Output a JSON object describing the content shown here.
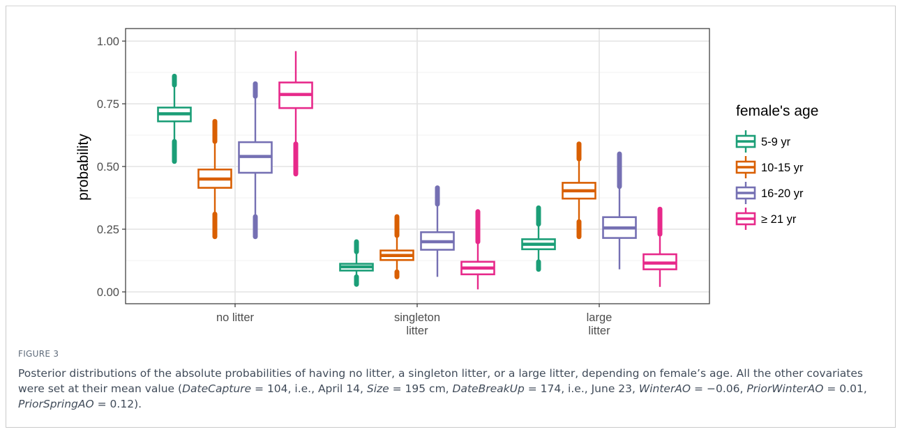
{
  "figure": {
    "label": "FIGURE 3",
    "caption_parts": [
      {
        "t": "Posterior distributions of the absolute probabilities of having no litter, a singleton litter, or a large litter, depending on female’s age. All the other covariates were set at their mean value (",
        "i": false
      },
      {
        "t": "DateCapture",
        "i": true
      },
      {
        "t": " = 104, i.e., April 14, ",
        "i": false
      },
      {
        "t": "Size",
        "i": true
      },
      {
        "t": " = 195 cm, ",
        "i": false
      },
      {
        "t": "DateBreakUp",
        "i": true
      },
      {
        "t": " = 174, i.e., June 23, ",
        "i": false
      },
      {
        "t": "WinterAO",
        "i": true
      },
      {
        "t": " = −0.06, ",
        "i": false
      },
      {
        "t": "PriorWinterAO",
        "i": true
      },
      {
        "t": " = 0.01, ",
        "i": false
      },
      {
        "t": "PriorSpringAO",
        "i": true
      },
      {
        "t": " = 0.12).",
        "i": false
      }
    ]
  },
  "chart_data": {
    "type": "boxplot",
    "ylabel": "probability",
    "ylim": [
      0,
      1
    ],
    "yticks": [
      "0.00",
      "0.25",
      "0.50",
      "0.75",
      "1.00"
    ],
    "grid": true,
    "categories": [
      [
        "no litter"
      ],
      [
        "singleton",
        "litter"
      ],
      [
        "large",
        "litter"
      ]
    ],
    "legend": {
      "title": "female's age",
      "position": "right",
      "entries": [
        "5-9 yr",
        "10-15 yr",
        "16-20 yr",
        "≥ 21 yr"
      ]
    },
    "colors": [
      "#1b9e77",
      "#d95f02",
      "#7570b3",
      "#e7298a"
    ],
    "boxes": [
      [
        {
          "min": 0.6,
          "q1": 0.68,
          "median": 0.71,
          "q3": 0.735,
          "max": 0.825,
          "outliers_low": [
            0.52,
            0.6
          ],
          "outliers_high": [
            0.825,
            0.86
          ]
        },
        {
          "min": 0.31,
          "q1": 0.415,
          "median": 0.45,
          "q3": 0.488,
          "max": 0.6,
          "outliers_low": [
            0.22,
            0.31
          ],
          "outliers_high": [
            0.6,
            0.68
          ]
        },
        {
          "min": 0.3,
          "q1": 0.475,
          "median": 0.54,
          "q3": 0.597,
          "max": 0.78,
          "outliers_low": [
            0.22,
            0.3
          ],
          "outliers_high": [
            0.78,
            0.83
          ]
        },
        {
          "min": 0.59,
          "q1": 0.733,
          "median": 0.787,
          "q3": 0.835,
          "max": 0.96,
          "outliers_low": [
            0.47,
            0.59
          ],
          "outliers_high": []
        }
      ],
      [
        {
          "min": 0.06,
          "q1": 0.085,
          "median": 0.1,
          "q3": 0.112,
          "max": 0.16,
          "outliers_low": [
            0.03,
            0.06
          ],
          "outliers_high": [
            0.16,
            0.2
          ]
        },
        {
          "min": 0.08,
          "q1": 0.127,
          "median": 0.145,
          "q3": 0.165,
          "max": 0.225,
          "outliers_low": [
            0.06,
            0.08
          ],
          "outliers_high": [
            0.225,
            0.3
          ]
        },
        {
          "min": 0.06,
          "q1": 0.168,
          "median": 0.2,
          "q3": 0.238,
          "max": 0.35,
          "outliers_low": [],
          "outliers_high": [
            0.35,
            0.415
          ]
        },
        {
          "min": 0.01,
          "q1": 0.07,
          "median": 0.095,
          "q3": 0.12,
          "max": 0.2,
          "outliers_low": [],
          "outliers_high": [
            0.2,
            0.32
          ]
        }
      ],
      [
        {
          "min": 0.12,
          "q1": 0.17,
          "median": 0.19,
          "q3": 0.21,
          "max": 0.27,
          "outliers_low": [
            0.09,
            0.12
          ],
          "outliers_high": [
            0.27,
            0.335
          ]
        },
        {
          "min": 0.28,
          "q1": 0.372,
          "median": 0.403,
          "q3": 0.435,
          "max": 0.53,
          "outliers_low": [
            0.22,
            0.28
          ],
          "outliers_high": [
            0.53,
            0.59
          ]
        },
        {
          "min": 0.09,
          "q1": 0.215,
          "median": 0.255,
          "q3": 0.298,
          "max": 0.42,
          "outliers_low": [],
          "outliers_high": [
            0.42,
            0.55
          ]
        },
        {
          "min": 0.02,
          "q1": 0.09,
          "median": 0.115,
          "q3": 0.15,
          "max": 0.23,
          "outliers_low": [],
          "outliers_high": [
            0.23,
            0.33
          ]
        }
      ]
    ]
  }
}
